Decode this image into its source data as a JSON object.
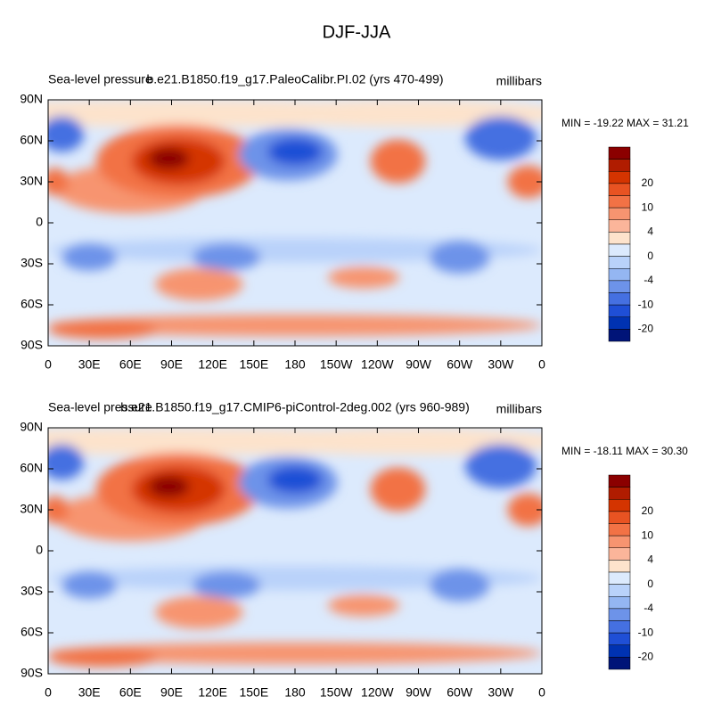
{
  "title": "DJF-JJA",
  "panels": [
    {
      "left_title": "Sea-level pressure",
      "center_title": "b.e21.B1850.f19_g17.PaleoCalibr.PI.02 (yrs 470-499)",
      "right_title": "millibars",
      "stats": "MIN = -19.22 MAX =  31.21"
    },
    {
      "left_title": "Sea-level pressure",
      "center_title": "b.e21.B1850.f19_g17.CMIP6-piControl-2deg.002 (yrs 960-989)",
      "right_title": "millibars",
      "stats": "MIN = -18.11 MAX =  30.30"
    }
  ],
  "lat_labels": [
    "90N",
    "60N",
    "30N",
    "0",
    "30S",
    "60S",
    "90S"
  ],
  "lon_labels": [
    "0",
    "30E",
    "60E",
    "90E",
    "120E",
    "150E",
    "180",
    "150W",
    "120W",
    "90W",
    "60W",
    "30W",
    "0"
  ],
  "colorbar_labels": [
    "20",
    "10",
    "4",
    "0",
    "-4",
    "-10",
    "-20"
  ],
  "colorbar_colors": [
    "#8b0000",
    "#b01c00",
    "#d43400",
    "#e85322",
    "#f27245",
    "#f79470",
    "#fbb59a",
    "#fde3cc",
    "#dceafd",
    "#b9d2fa",
    "#94b6f2",
    "#6d93e9",
    "#4570e1",
    "#1f4fd6",
    "#0032b2",
    "#001478"
  ]
}
